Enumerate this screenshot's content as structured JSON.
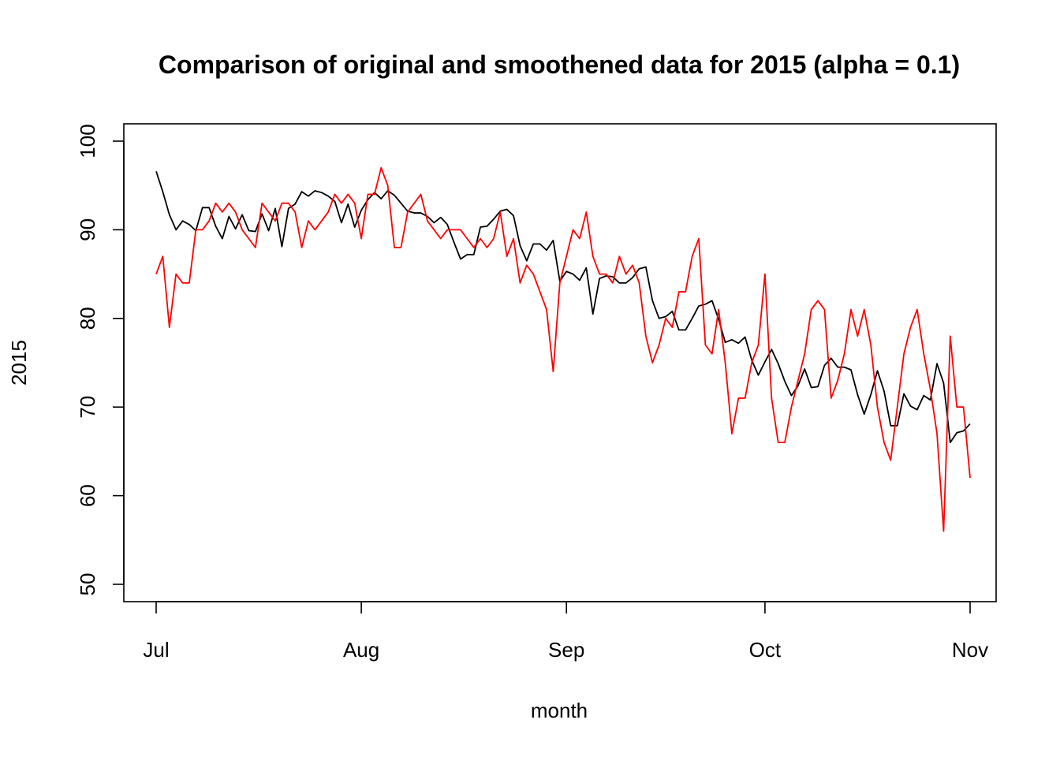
{
  "chart_data": {
    "type": "line",
    "title": "Comparison of original and smoothened data for 2015 (alpha = 0.1)",
    "xlabel": "month",
    "ylabel": "2015",
    "ylim": [
      50,
      100
    ],
    "xlim": [
      0,
      123
    ],
    "yticks": [
      "50",
      "60",
      "70",
      "80",
      "90",
      "100"
    ],
    "x_axis": {
      "ticks": [
        {
          "day": 0,
          "label": "Jul"
        },
        {
          "day": 31,
          "label": "Aug"
        },
        {
          "day": 62,
          "label": "Sep"
        },
        {
          "day": 92,
          "label": "Oct"
        },
        {
          "day": 123,
          "label": "Nov"
        }
      ]
    },
    "grid": false,
    "legend": "none",
    "series": [
      {
        "color": "#000000",
        "values": [
          96.6,
          94.3,
          91.7,
          90.0,
          91.0,
          90.6,
          89.9,
          92.5,
          92.5,
          90.4,
          89.0,
          91.5,
          90.1,
          91.7,
          89.9,
          89.8,
          91.8,
          89.9,
          92.4,
          88.1,
          92.4,
          92.9,
          94.3,
          93.8,
          94.4,
          94.2,
          93.8,
          93.2,
          90.8,
          92.9,
          90.3,
          92.2,
          93.4,
          94.2,
          93.5,
          94.4,
          93.9,
          93.0,
          92.1,
          91.9,
          91.9,
          91.5,
          90.8,
          91.4,
          90.6,
          88.6,
          86.7,
          87.2,
          87.2,
          90.3,
          90.4,
          91.2,
          92.1,
          92.3,
          91.6,
          88.2,
          86.5,
          88.4,
          88.4,
          87.7,
          88.8,
          84.2,
          85.3,
          85.0,
          84.3,
          85.7,
          80.5,
          84.5,
          84.8,
          84.7,
          84.0,
          84.0,
          84.6,
          85.6,
          85.8,
          82.0,
          80.0,
          80.2,
          80.8,
          78.7,
          78.7,
          80.0,
          81.4,
          81.6,
          82.0,
          79.9,
          77.3,
          77.6,
          77.2,
          77.9,
          75.3,
          73.6,
          75.1,
          76.5,
          74.9,
          72.9,
          71.3,
          72.4,
          74.3,
          72.2,
          72.3,
          74.7,
          75.5,
          74.5,
          74.5,
          74.2,
          71.4,
          69.2,
          71.4,
          74.1,
          71.8,
          67.9,
          67.9,
          71.5,
          70.1,
          69.7,
          71.3,
          70.8,
          74.9,
          72.7,
          66.0,
          67.1,
          67.3,
          68.1
        ]
      },
      {
        "color": "#ff0000",
        "values": [
          85,
          87,
          79,
          85,
          84,
          84,
          90,
          90,
          91,
          93,
          92,
          93,
          92,
          90,
          89,
          88,
          93,
          92,
          91,
          93,
          93,
          92,
          88,
          91,
          90,
          91,
          92,
          94,
          93,
          94,
          93,
          89,
          94,
          94,
          97,
          95,
          88,
          88,
          92,
          93,
          94,
          91,
          90,
          89,
          90,
          90,
          90,
          89,
          88,
          89,
          88,
          89,
          92,
          87,
          89,
          84,
          86,
          85,
          83,
          81,
          74,
          84,
          87,
          90,
          89,
          92,
          87,
          85,
          85,
          84,
          87,
          85,
          86,
          84,
          78,
          75,
          77,
          80,
          79,
          83,
          83,
          87,
          89,
          77,
          76,
          81,
          75,
          67,
          71,
          71,
          75,
          77,
          85,
          71,
          66,
          66,
          70,
          73,
          76,
          81,
          82,
          81,
          71,
          73,
          76,
          81,
          78,
          81,
          77,
          70,
          66,
          64,
          70,
          76,
          79,
          81,
          76,
          72,
          67,
          56,
          78,
          70,
          70,
          62
        ]
      }
    ]
  }
}
